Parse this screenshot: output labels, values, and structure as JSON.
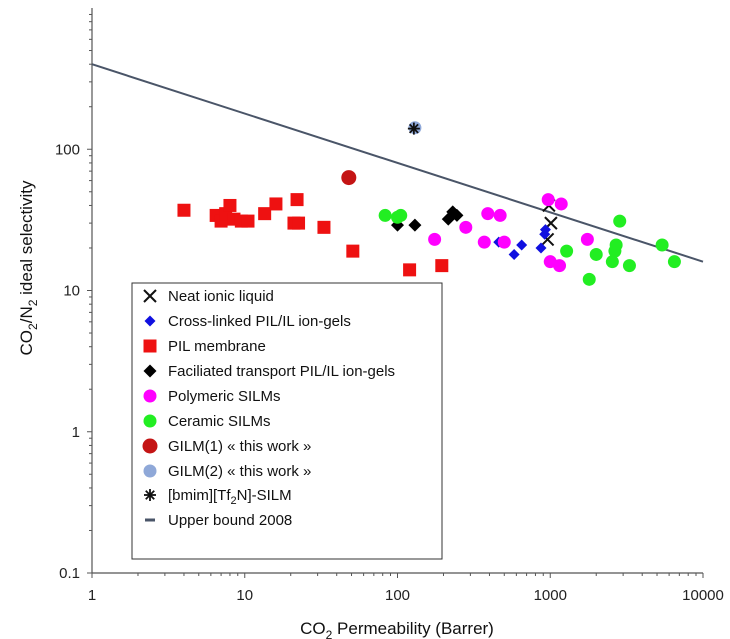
{
  "chart_data": {
    "type": "scatter",
    "title": "",
    "xlabel": {
      "main": "CO",
      "sub": "2",
      "rest": " Permeability (Barrer)"
    },
    "ylabel": {
      "a": "CO",
      "a_sub": "2",
      "b": "/N",
      "b_sub": "2",
      "c": " ideal selectivity"
    },
    "x_scale": "log",
    "y_scale": "log",
    "xlim": [
      1,
      10000
    ],
    "ylim": [
      0.1,
      1000
    ],
    "x_ticks": [
      "1",
      "10",
      "100",
      "1000",
      "10000"
    ],
    "y_ticks": [
      "0.1",
      "1",
      "10",
      "100"
    ],
    "grid": false,
    "legend_position": "lower-left, inside plot",
    "series": [
      {
        "name": "Neat ionic liquid",
        "marker": "x",
        "color": "#111111",
        "points": [
          [
            980,
            40
          ],
          [
            1010,
            30
          ],
          [
            960,
            23
          ]
        ]
      },
      {
        "name": "Cross-linked PIL/IL ion-gels",
        "marker": "diamond-small",
        "color": "#1010e0",
        "points": [
          [
            460,
            22
          ],
          [
            580,
            18
          ],
          [
            650,
            21
          ],
          [
            870,
            20
          ],
          [
            920,
            25
          ],
          [
            930,
            27
          ]
        ]
      },
      {
        "name": "PIL membrane",
        "marker": "square",
        "color": "#ee1111",
        "points": [
          [
            4,
            37
          ],
          [
            6.5,
            34
          ],
          [
            7,
            31
          ],
          [
            7.5,
            35
          ],
          [
            8,
            40
          ],
          [
            8.5,
            32
          ],
          [
            9.5,
            31
          ],
          [
            10.5,
            31
          ],
          [
            13.5,
            35
          ],
          [
            16,
            41
          ],
          [
            21,
            30
          ],
          [
            22,
            44
          ],
          [
            22.5,
            30
          ],
          [
            33,
            28
          ],
          [
            51,
            19
          ],
          [
            120,
            14
          ],
          [
            195,
            15
          ]
        ]
      },
      {
        "name": "Faciliated transport PIL/IL ion-gels",
        "marker": "diamond",
        "color": "#000000",
        "points": [
          [
            100,
            29
          ],
          [
            130,
            29
          ],
          [
            215,
            32
          ],
          [
            230,
            36
          ],
          [
            245,
            34
          ]
        ]
      },
      {
        "name": "Polymeric SILMs",
        "marker": "circle",
        "color": "#ff00ff",
        "points": [
          [
            175,
            23
          ],
          [
            280,
            28
          ],
          [
            370,
            22
          ],
          [
            390,
            35
          ],
          [
            470,
            34
          ],
          [
            500,
            22
          ],
          [
            970,
            44
          ],
          [
            1000,
            16
          ],
          [
            1150,
            15
          ],
          [
            1180,
            41
          ],
          [
            1750,
            23
          ]
        ]
      },
      {
        "name": "Ceramic SILMs",
        "marker": "circle",
        "color": "#22ee22",
        "points": [
          [
            83,
            34
          ],
          [
            100,
            33
          ],
          [
            105,
            34
          ],
          [
            1280,
            19
          ],
          [
            1800,
            12
          ],
          [
            2000,
            18
          ],
          [
            2550,
            16
          ],
          [
            2650,
            19
          ],
          [
            2700,
            21
          ],
          [
            2850,
            31
          ],
          [
            3300,
            15
          ],
          [
            5400,
            21
          ],
          [
            6500,
            16
          ]
        ]
      },
      {
        "name": "GILM(1) « this work »",
        "marker": "circle-large",
        "color": "#c41414",
        "points": [
          [
            48,
            63
          ]
        ]
      },
      {
        "name": "GILM(2) « this work »",
        "marker": "circle",
        "color": "#8fa8d8",
        "points": [
          [
            130,
            142
          ]
        ]
      },
      {
        "name": "[bmim][Tf2N]-SILM",
        "marker": "asterisk",
        "color": "#111111",
        "points": [
          [
            128,
            140
          ]
        ]
      },
      {
        "name": "Upper bound 2008",
        "marker": "line",
        "color": "#4a5568",
        "points": [
          [
            1,
            400
          ],
          [
            10000,
            16
          ]
        ]
      }
    ]
  }
}
